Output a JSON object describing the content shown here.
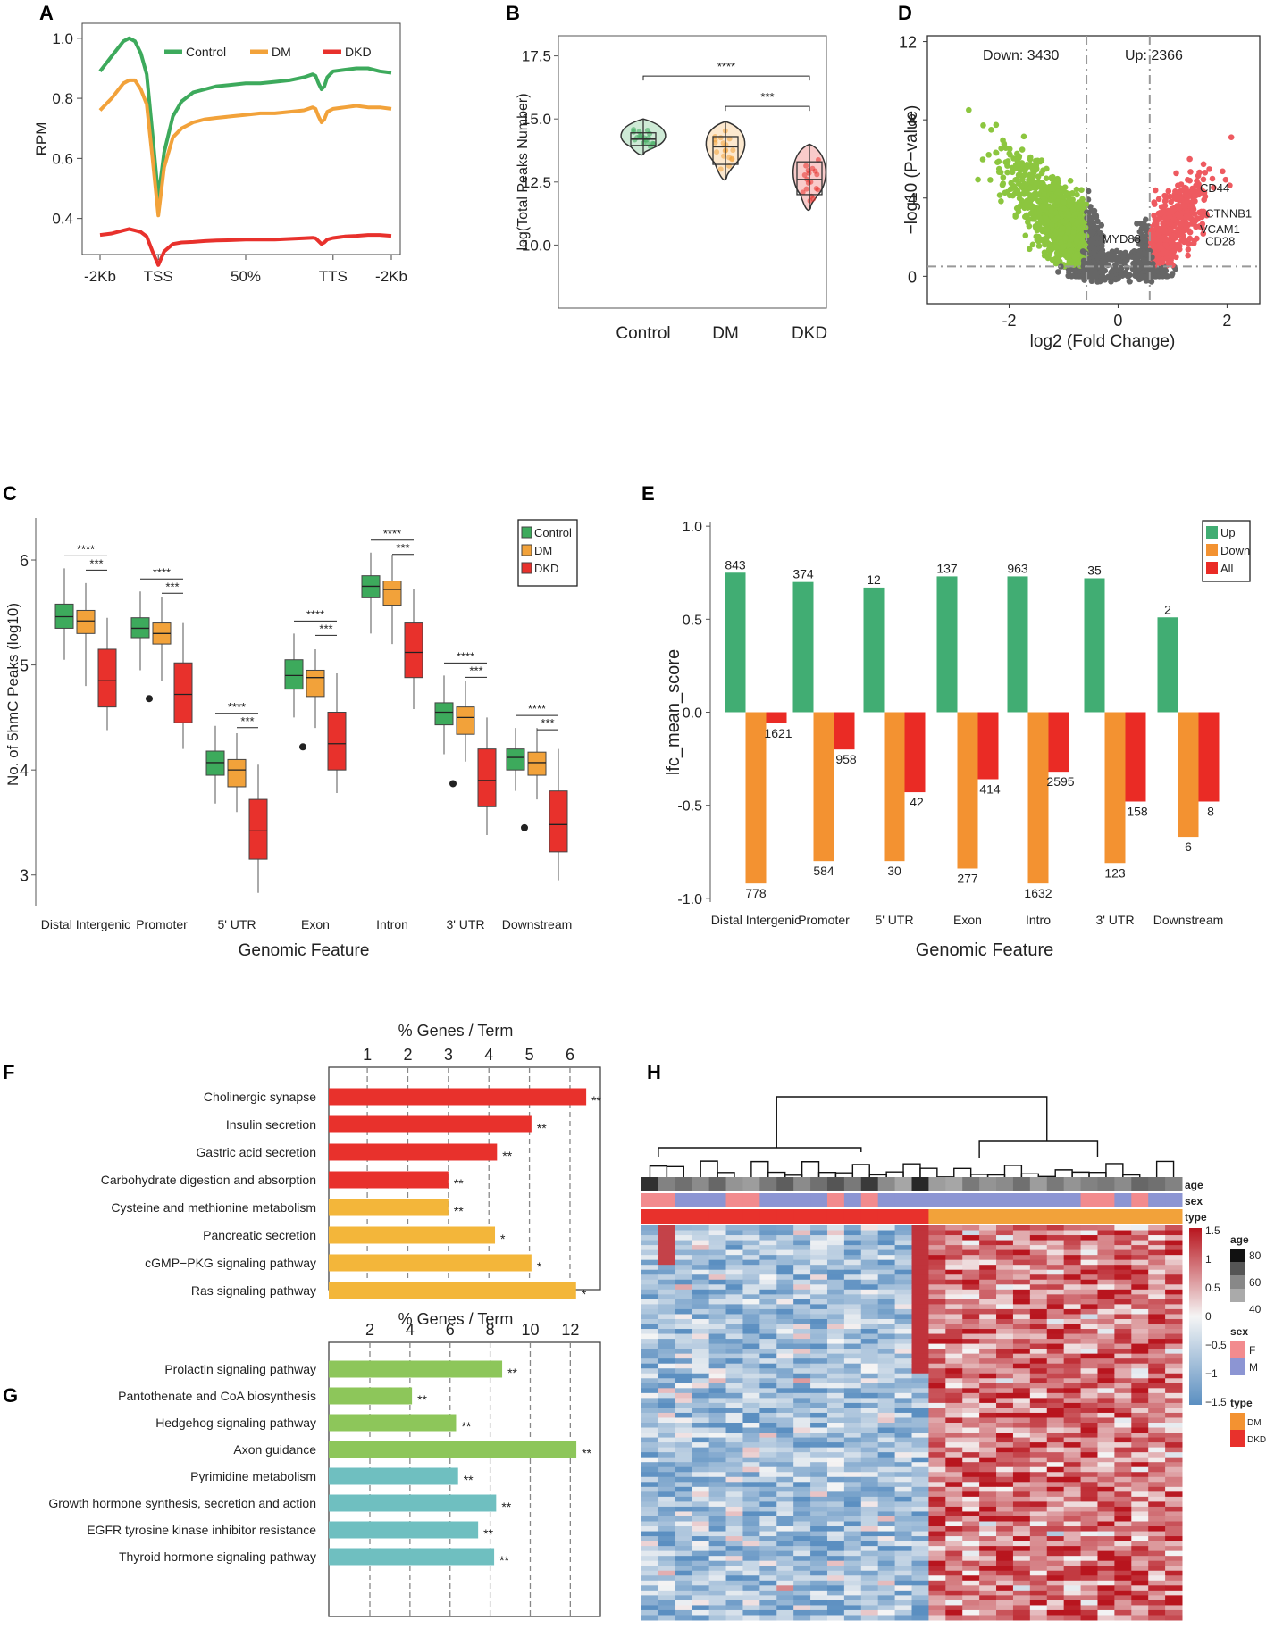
{
  "colors": {
    "control": "#3daa5c",
    "dm": "#f2a23a",
    "dkd": "#e8312c",
    "up": "#41ad73",
    "down": "#f39231",
    "all": "#ea2b25",
    "volcano_down": "#8cc63f",
    "volcano_up": "#ee5a60",
    "volcano_ns": "#666666",
    "go_red": "#e8312c",
    "go_yellow": "#f3b63a",
    "go_green": "#8dc65a",
    "go_teal": "#6fbfc0",
    "heat_low": "#5b8fc1",
    "heat_mid": "#f5f5f5",
    "heat_high": "#b8151e"
  },
  "chart_data": [
    {
      "panel": "A",
      "type": "line",
      "ylabel": "RPM",
      "xticks": [
        "-2Kb",
        "TSS",
        "50%",
        "TTS",
        "-2Kb"
      ],
      "yticks": [
        "0.4",
        "0.6",
        "0.8",
        "1.0"
      ],
      "ylim": [
        0.28,
        1.05
      ],
      "x": [
        0,
        4,
        8,
        10,
        12,
        14,
        16,
        18,
        20,
        22,
        25,
        28,
        32,
        36,
        40,
        45,
        50,
        55,
        60,
        65,
        70,
        73,
        74,
        75,
        76,
        77,
        78,
        80,
        84,
        88,
        92,
        96,
        100
      ],
      "series": [
        {
          "name": "Control",
          "values": [
            0.89,
            0.94,
            0.99,
            1.0,
            0.99,
            0.95,
            0.88,
            0.68,
            0.47,
            0.62,
            0.74,
            0.79,
            0.82,
            0.83,
            0.84,
            0.845,
            0.85,
            0.85,
            0.855,
            0.86,
            0.87,
            0.88,
            0.875,
            0.85,
            0.83,
            0.84,
            0.87,
            0.89,
            0.895,
            0.9,
            0.9,
            0.89,
            0.885
          ]
        },
        {
          "name": "DM",
          "values": [
            0.76,
            0.8,
            0.85,
            0.86,
            0.86,
            0.83,
            0.78,
            0.6,
            0.41,
            0.57,
            0.67,
            0.7,
            0.72,
            0.73,
            0.735,
            0.74,
            0.745,
            0.75,
            0.75,
            0.755,
            0.76,
            0.77,
            0.765,
            0.74,
            0.72,
            0.73,
            0.755,
            0.765,
            0.77,
            0.775,
            0.77,
            0.77,
            0.765
          ]
        },
        {
          "name": "DKD",
          "values": [
            0.345,
            0.35,
            0.36,
            0.365,
            0.36,
            0.355,
            0.34,
            0.29,
            0.245,
            0.29,
            0.315,
            0.32,
            0.322,
            0.325,
            0.327,
            0.328,
            0.33,
            0.33,
            0.33,
            0.332,
            0.334,
            0.336,
            0.334,
            0.325,
            0.315,
            0.32,
            0.33,
            0.335,
            0.34,
            0.342,
            0.345,
            0.345,
            0.342
          ]
        }
      ],
      "legend": [
        "Control",
        "DM",
        "DKD"
      ]
    },
    {
      "panel": "B",
      "type": "violin+box",
      "ylabel": "log(Total Peaks Number)",
      "categories": [
        "Control",
        "DM",
        "DKD"
      ],
      "yticks": [
        "10.0",
        "12.5",
        "15.0",
        "17.5"
      ],
      "ylim": [
        7.5,
        18.3
      ],
      "boxes": [
        {
          "min": 13.6,
          "q1": 13.95,
          "median": 14.2,
          "q3": 14.45,
          "max": 15.0
        },
        {
          "min": 12.6,
          "q1": 13.2,
          "median": 13.9,
          "q3": 14.3,
          "max": 14.9
        },
        {
          "min": 11.4,
          "q1": 12.0,
          "median": 12.6,
          "q3": 13.3,
          "max": 14.0
        }
      ],
      "comparisons": [
        {
          "from": "Control",
          "to": "DKD",
          "label": "****",
          "y": 16.7
        },
        {
          "from": "DM",
          "to": "DKD",
          "label": "***",
          "y": 15.5
        }
      ]
    },
    {
      "panel": "D",
      "type": "scatter",
      "title_left": "Down: 3430",
      "title_right": "Up: 2366",
      "xlabel": "log2 (Fold Change)",
      "ylabel": "−log10 (P−value)",
      "xticks": [
        "-2",
        "0",
        "2"
      ],
      "yticks": [
        "0",
        "4",
        "8",
        "12"
      ],
      "xlim": [
        -3.5,
        2.6
      ],
      "ylim": [
        -1.4,
        12.3
      ],
      "thresholds": {
        "fc": 0.58,
        "p": 0.5
      },
      "genes": [
        {
          "name": "CD44",
          "x": 1.6,
          "y": 4.3
        },
        {
          "name": "CTNNB1",
          "x": 1.7,
          "y": 3.0
        },
        {
          "name": "VCAM1",
          "x": 1.6,
          "y": 2.2
        },
        {
          "name": "CD28",
          "x": 1.7,
          "y": 1.6
        },
        {
          "name": "MYD88",
          "x": 0.1,
          "y": 1.7
        }
      ]
    },
    {
      "panel": "C",
      "type": "boxplot",
      "xlabel": "Genomic Feature",
      "ylabel": "No. of 5hmC Peaks (log10)",
      "categories": [
        "Distal Intergenic",
        "Promoter",
        "5' UTR",
        "Exon",
        "Intron",
        "3' UTR",
        "Downstream"
      ],
      "legend": [
        "Control",
        "DM",
        "DKD"
      ],
      "yticks": [
        "3",
        "4",
        "5",
        "6"
      ],
      "ylim": [
        2.7,
        6.4
      ],
      "groups": [
        {
          "control": [
            5.05,
            5.35,
            5.46,
            5.58,
            5.92
          ],
          "dm": [
            4.8,
            5.3,
            5.42,
            5.52,
            5.78
          ],
          "dkd": [
            4.38,
            4.6,
            4.85,
            5.15,
            5.45
          ]
        },
        {
          "control": [
            4.95,
            5.26,
            5.35,
            5.45,
            5.7
          ],
          "dm": [
            4.85,
            5.2,
            5.3,
            5.4,
            5.65
          ],
          "dkd": [
            4.2,
            4.45,
            4.72,
            5.02,
            5.4
          ]
        },
        {
          "control": [
            3.68,
            3.95,
            4.07,
            4.18,
            4.42
          ],
          "dm": [
            3.6,
            3.84,
            4.0,
            4.1,
            4.35
          ],
          "dkd": [
            2.83,
            3.15,
            3.42,
            3.72,
            4.05
          ]
        },
        {
          "control": [
            4.5,
            4.77,
            4.9,
            5.05,
            5.3
          ],
          "dm": [
            4.4,
            4.7,
            4.88,
            4.95,
            5.15
          ],
          "dkd": [
            3.78,
            4.0,
            4.25,
            4.55,
            4.92
          ]
        },
        {
          "control": [
            5.3,
            5.64,
            5.75,
            5.85,
            6.07
          ],
          "dm": [
            5.2,
            5.57,
            5.72,
            5.8,
            6.05
          ],
          "dkd": [
            4.58,
            4.88,
            5.12,
            5.4,
            5.72
          ]
        },
        {
          "control": [
            4.15,
            4.43,
            4.55,
            4.64,
            4.9
          ],
          "dm": [
            4.08,
            4.34,
            4.5,
            4.6,
            4.85
          ],
          "dkd": [
            3.38,
            3.65,
            3.9,
            4.2,
            4.5
          ]
        },
        {
          "control": [
            3.8,
            4.0,
            4.12,
            4.2,
            4.4
          ],
          "dm": [
            3.72,
            3.95,
            4.07,
            4.17,
            4.4
          ],
          "dkd": [
            2.95,
            3.22,
            3.48,
            3.8,
            4.2
          ]
        }
      ],
      "outliers": [
        {
          "group": 1,
          "series": "dm",
          "value": 4.68
        },
        {
          "group": 3,
          "series": "dm",
          "value": 4.22
        },
        {
          "group": 5,
          "series": "dm",
          "value": 3.87
        },
        {
          "group": 6,
          "series": "dm",
          "value": 3.45
        }
      ],
      "sig_long": "****",
      "sig_short": "***"
    },
    {
      "panel": "E",
      "type": "bar",
      "xlabel": "Genomic Feature",
      "ylabel": "lfc_mean_score",
      "categories": [
        "Distal Intergenic",
        "Promoter",
        "5' UTR",
        "Exon",
        "Intro",
        "3' UTR",
        "Downstream"
      ],
      "yticks": [
        "-1.0",
        "-0.5",
        "0.0",
        "0.5",
        "1.0"
      ],
      "ylim": [
        -1.02,
        1.02
      ],
      "series": [
        {
          "name": "Up",
          "values": [
            0.75,
            0.7,
            0.67,
            0.73,
            0.73,
            0.72,
            0.51
          ],
          "labels": [
            "843",
            "374",
            "12",
            "137",
            "963",
            "35",
            "2"
          ]
        },
        {
          "name": "Down",
          "values": [
            -0.92,
            -0.8,
            -0.8,
            -0.84,
            -0.92,
            -0.81,
            -0.67
          ],
          "labels": [
            "778",
            "584",
            "30",
            "277",
            "1632",
            "123",
            "6"
          ]
        },
        {
          "name": "All",
          "values": [
            -0.06,
            -0.2,
            -0.43,
            -0.36,
            -0.32,
            -0.48,
            -0.48
          ],
          "labels": [
            "1621",
            "958",
            "42",
            "414",
            "2595",
            "158",
            "8"
          ]
        }
      ],
      "legend": [
        "Up",
        "Down",
        "All"
      ]
    },
    {
      "panel": "F",
      "type": "bar",
      "orientation": "horizontal",
      "title": "% Genes / Term",
      "xticks": [
        "1",
        "2",
        "3",
        "4",
        "5",
        "6"
      ],
      "xlim": [
        0.05,
        6.75
      ],
      "categories": [
        "Cholinergic synapse",
        "Insulin secretion",
        "Gastric acid secretion",
        "Carbohydrate digestion and absorption",
        "Cysteine and methionine metabolism",
        "Pancreatic secretion",
        "cGMP−PKG signaling pathway",
        "Ras signaling pathway"
      ],
      "values": [
        6.4,
        5.05,
        4.2,
        3.0,
        3.0,
        4.15,
        5.05,
        6.15
      ],
      "significance": [
        "**",
        "**",
        "**",
        "**",
        "**",
        "*",
        "*",
        "*"
      ],
      "bar_colors": [
        "go_red",
        "go_red",
        "go_red",
        "go_red",
        "go_yellow",
        "go_yellow",
        "go_yellow",
        "go_yellow"
      ]
    },
    {
      "panel": "G",
      "type": "bar",
      "orientation": "horizontal",
      "title": "% Genes / Term",
      "xticks": [
        "2",
        "4",
        "6",
        "8",
        "10",
        "12"
      ],
      "xlim": [
        -0.05,
        13.5
      ],
      "categories": [
        "Prolactin signaling pathway",
        "Pantothenate and CoA biosynthesis",
        "Hedgehog signaling pathway",
        "Axon guidance",
        "Pyrimidine metabolism",
        "Growth hormone synthesis, secretion and action",
        "EGFR tyrosine kinase inhibitor resistance",
        "Thyroid hormone signaling pathway"
      ],
      "values": [
        8.6,
        4.1,
        6.3,
        12.3,
        6.4,
        8.3,
        7.4,
        8.2
      ],
      "significance": [
        "**",
        "**",
        "**",
        "**",
        "**",
        "**",
        "**",
        "**"
      ],
      "bar_colors": [
        "go_green",
        "go_green",
        "go_green",
        "go_green",
        "go_teal",
        "go_teal",
        "go_teal",
        "go_teal"
      ]
    },
    {
      "panel": "H",
      "type": "heatmap",
      "annotations": [
        "age",
        "sex",
        "type"
      ],
      "scale_ticks": [
        "1.5",
        "1",
        "0.5",
        "0",
        "−0.5",
        "−1",
        "−1.5"
      ],
      "age_legend": {
        "title": "age",
        "ticks": [
          "80",
          "60",
          "40"
        ]
      },
      "sex_legend": {
        "title": "sex",
        "items": [
          {
            "label": "F",
            "color": "#f28b8e"
          },
          {
            "label": "M",
            "color": "#8c95d3"
          }
        ]
      },
      "type_legend": {
        "title": "type",
        "items": [
          {
            "label": "DM",
            "color": "#f39231"
          },
          {
            "label": "DKD",
            "color": "#e8312c"
          }
        ]
      },
      "n_samples": 32,
      "n_dkd": 17,
      "age": [
        0.95,
        0.5,
        0.6,
        0.45,
        0.65,
        0.4,
        0.35,
        0.55,
        0.7,
        0.45,
        0.6,
        0.75,
        0.55,
        0.9,
        0.45,
        0.3,
        1.0,
        0.35,
        0.3,
        0.55,
        0.4,
        0.45,
        0.6,
        0.35,
        0.55,
        0.4,
        0.5,
        0.55,
        0.45,
        0.65,
        0.6,
        0.5
      ],
      "sex": [
        "F",
        "F",
        "M",
        "M",
        "M",
        "F",
        "F",
        "M",
        "M",
        "M",
        "M",
        "F",
        "M",
        "F",
        "M",
        "M",
        "M",
        "M",
        "M",
        "M",
        "M",
        "M",
        "M",
        "M",
        "M",
        "M",
        "F",
        "F",
        "M",
        "F",
        "M",
        "M"
      ]
    }
  ],
  "panels": {
    "A": "A",
    "B": "B",
    "C": "C",
    "D": "D",
    "E": "E",
    "F": "F",
    "G": "G",
    "H": "H"
  }
}
